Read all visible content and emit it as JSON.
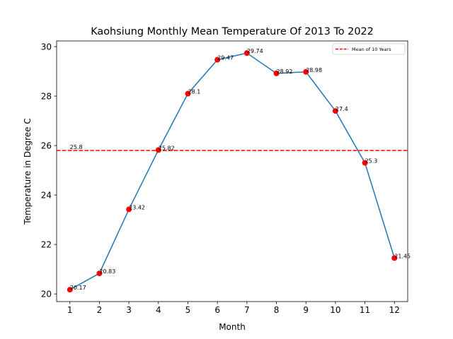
{
  "chart_data": {
    "type": "line",
    "title": "Kaohsiung Monthly Mean Temperature Of 2013 To 2022",
    "xlabel": "Month",
    "ylabel": "Temperature in Degree C",
    "x": [
      1,
      2,
      3,
      4,
      5,
      6,
      7,
      8,
      9,
      10,
      11,
      12
    ],
    "xlim": [
      0.55,
      12.45
    ],
    "ylim": [
      19.69,
      30.23
    ],
    "yticks": [
      20,
      22,
      24,
      26,
      28,
      30
    ],
    "grid": false,
    "legend_placement": "top-right",
    "series": [
      {
        "values": [
          20.17,
          20.83,
          23.42,
          25.82,
          28.1,
          29.47,
          29.74,
          28.92,
          28.98,
          27.4,
          25.3,
          21.45
        ],
        "labels": [
          "20.17",
          "20.83",
          "23.42",
          "25.82",
          "28.1",
          "29.47",
          "29.74",
          "28.92",
          "28.98",
          "27.4",
          "25.3",
          "21.45"
        ],
        "line_color": "#1f77b4",
        "marker_color": "#ff0000"
      }
    ],
    "reference_line": {
      "name": "Mean of 10 Years",
      "value": 25.8,
      "label": "25.8",
      "color": "#ff0000",
      "style": "dashed"
    }
  }
}
